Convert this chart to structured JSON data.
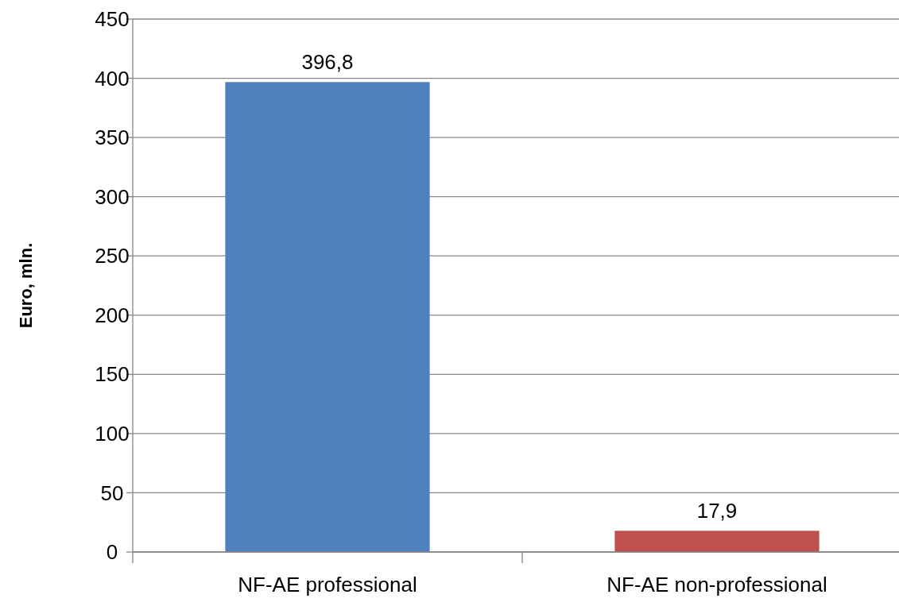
{
  "chart_data": {
    "type": "bar",
    "ylabel": "Euro, mln.",
    "categories": [
      "NF-AE professional",
      "NF-AE non-professional"
    ],
    "values": [
      396.8,
      17.9
    ],
    "colors": [
      "#4f81bd",
      "#c0504d"
    ],
    "value_labels": [
      "396,8",
      "17,9"
    ],
    "ylim": [
      0,
      450
    ],
    "yticks": [
      0,
      50,
      100,
      150,
      200,
      250,
      300,
      350,
      400,
      450
    ],
    "grid": "y"
  }
}
